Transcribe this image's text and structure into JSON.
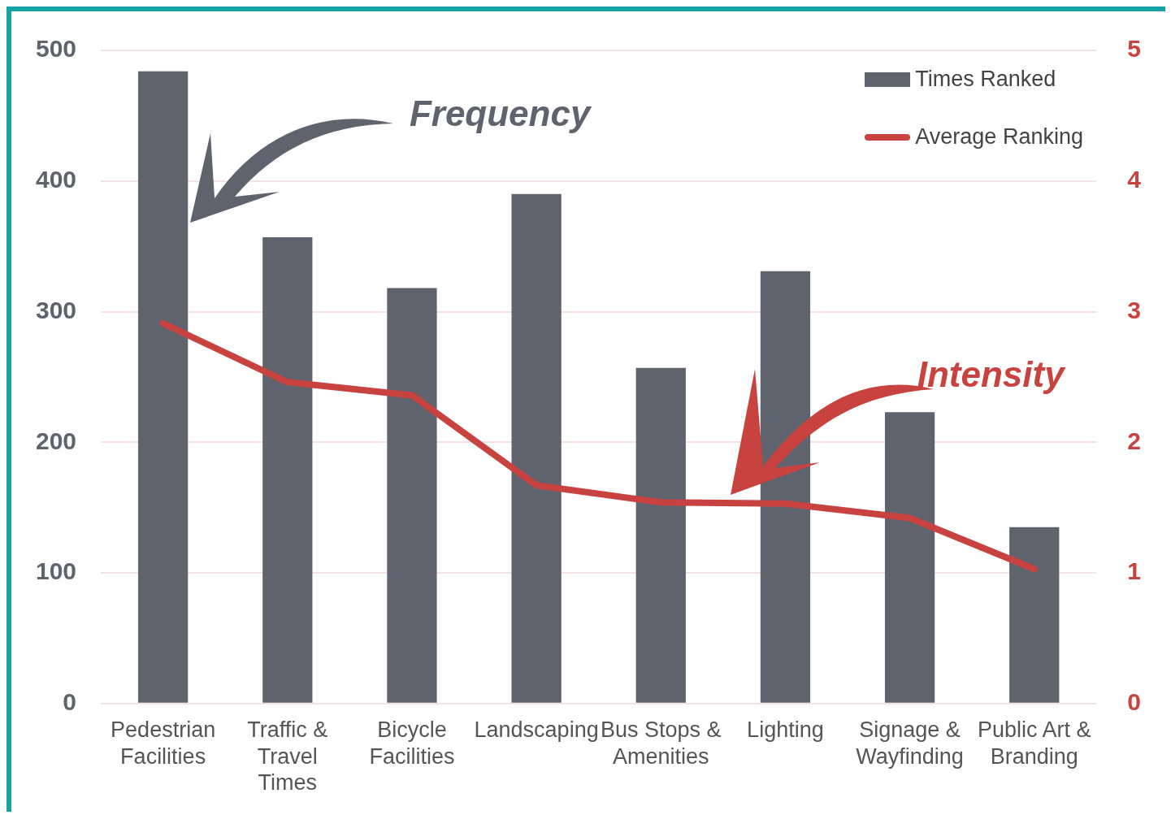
{
  "chart_data": {
    "type": "bar",
    "categories": [
      "Pedestrian Facilities",
      "Traffic & Travel Times",
      "Bicycle Facilities",
      "Landscaping",
      "Bus Stops & Amenities",
      "Lighting",
      "Signage & Wayfinding",
      "Public Art & Branding"
    ],
    "series": [
      {
        "name": "Times Ranked",
        "color": "#5f636e",
        "values": [
          484,
          357,
          318,
          390,
          257,
          331,
          223,
          135
        ]
      },
      {
        "name": "Average Ranking",
        "type": "line",
        "axis": "y2",
        "color": "#c8433f",
        "values": [
          2.91,
          2.46,
          2.36,
          1.67,
          1.54,
          1.53,
          1.42,
          1.03
        ]
      }
    ],
    "ylim": [
      0,
      500
    ],
    "yticks": [
      0,
      100,
      200,
      300,
      400,
      500
    ],
    "y2lim": [
      0,
      5
    ],
    "y2ticks": [
      0,
      1,
      2,
      3,
      4,
      5
    ],
    "grid": "y",
    "legend": "top right",
    "marker": "none",
    "annotations": [
      "Frequency",
      "Intensity"
    ]
  }
}
